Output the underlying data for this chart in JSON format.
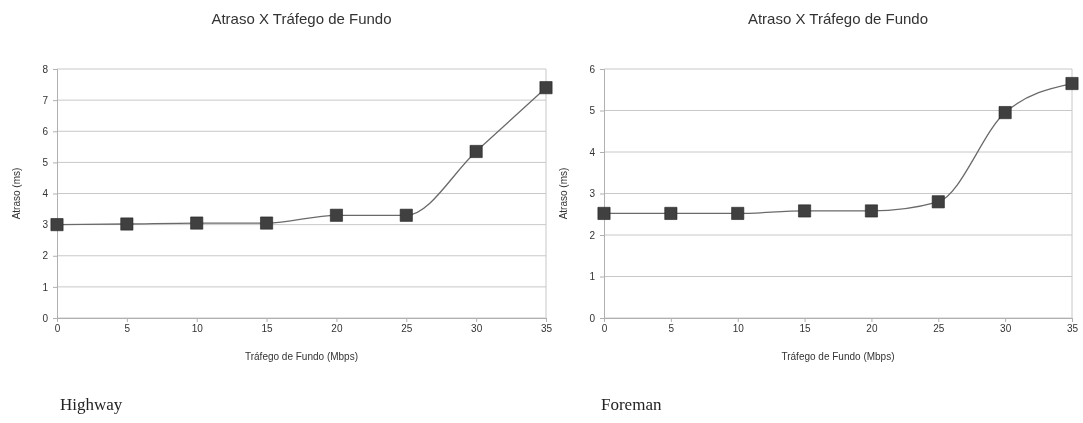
{
  "chart_data": [
    {
      "type": "line",
      "title": "Atraso X Tráfego de Fundo",
      "xlabel": "Tráfego de Fundo (Mbps)",
      "ylabel": "Atraso (ms)",
      "x": [
        0,
        5,
        10,
        15,
        20,
        25,
        30,
        35
      ],
      "series": [
        {
          "color": "#404040",
          "values": [
            3.0,
            3.02,
            3.05,
            3.05,
            3.3,
            3.3,
            5.35,
            7.4
          ]
        }
      ],
      "xlim": [
        0,
        35
      ],
      "xticks": [
        0,
        5,
        10,
        15,
        20,
        25,
        30,
        35
      ],
      "ylim": [
        0,
        8
      ],
      "yticks": [
        0,
        1,
        2,
        3,
        4,
        5,
        6,
        7,
        8
      ],
      "grid": "y",
      "marker": "square",
      "line_style": "solid",
      "annotations": [
        "Highway"
      ]
    },
    {
      "type": "line",
      "title": "Atraso X Tráfego de Fundo",
      "xlabel": "Tráfego de Fundo (Mbps)",
      "ylabel": "Atraso (ms)",
      "x": [
        0,
        5,
        10,
        15,
        20,
        25,
        30,
        35
      ],
      "series": [
        {
          "color": "#404040",
          "values": [
            2.52,
            2.52,
            2.52,
            2.58,
            2.58,
            2.8,
            4.95,
            5.65
          ]
        }
      ],
      "xlim": [
        0,
        35
      ],
      "xticks": [
        0,
        5,
        10,
        15,
        20,
        25,
        30,
        35
      ],
      "ylim": [
        0,
        6
      ],
      "yticks": [
        0,
        1,
        2,
        3,
        4,
        5,
        6
      ],
      "grid": "y",
      "marker": "square",
      "line_style": "solid",
      "annotations": [
        "Foreman"
      ]
    }
  ]
}
